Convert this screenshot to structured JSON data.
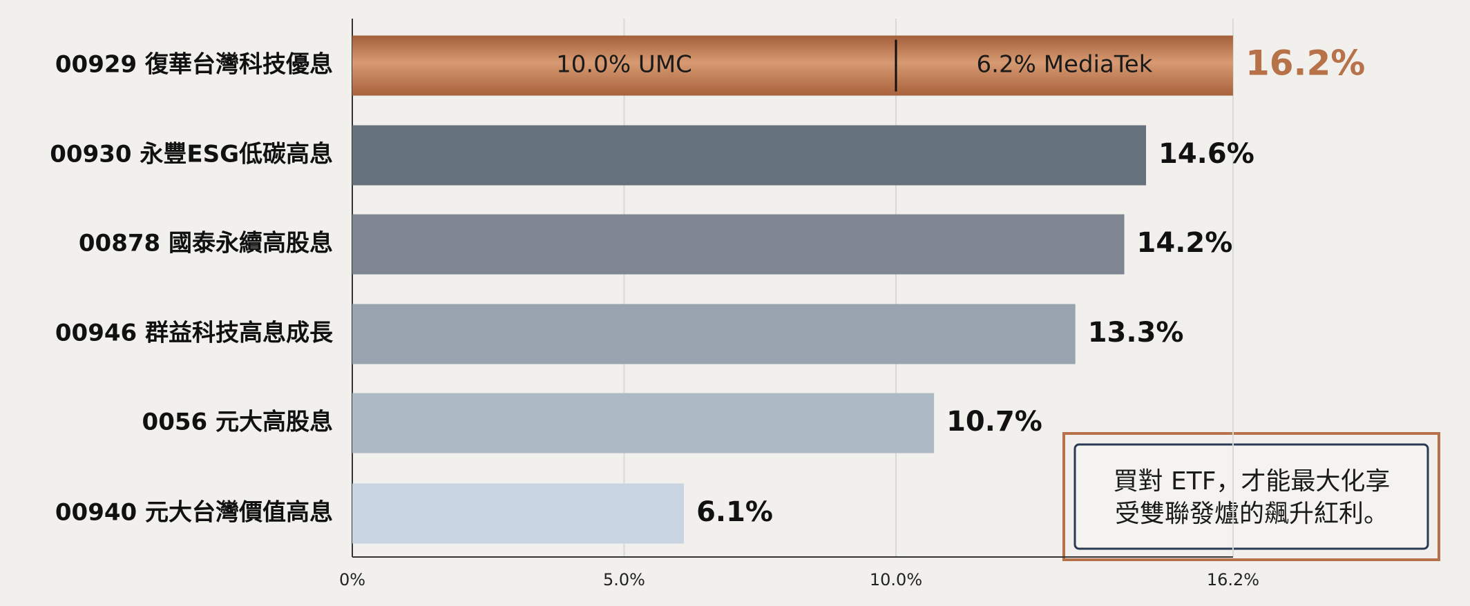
{
  "chart_data": {
    "type": "bar",
    "orientation": "horizontal",
    "categories": [
      "00929 復華台灣科技優息",
      "00930 永豐ESG低碳高息",
      "00878 國泰永續高股息",
      "00946 群益科技高息成長",
      "0056 元大高股息",
      "00940 元大台灣價值高息"
    ],
    "values": [
      16.2,
      14.6,
      14.2,
      13.3,
      10.7,
      6.1
    ],
    "value_labels": [
      "16.2%",
      "14.6%",
      "14.2%",
      "13.3%",
      "10.7%",
      "6.1%"
    ],
    "colors": [
      "#b8724a",
      "#65717b",
      "#7d8691",
      "#9aa4b1",
      "#aeb9c6",
      "#c9d4e2"
    ],
    "segments": [
      {
        "name": "UMC",
        "value": 10.0,
        "label": "10.0% UMC"
      },
      {
        "name": "MediaTek",
        "value": 6.2,
        "label": "6.2% MediaTek"
      }
    ],
    "xlim": [
      0,
      20
    ],
    "xticks": [
      {
        "value": 0,
        "label": "0%"
      },
      {
        "value": 5,
        "label": "5.0%"
      },
      {
        "value": 10,
        "label": "10.0%"
      },
      {
        "value": 16.2,
        "label": "16.2%"
      }
    ],
    "grid": true,
    "callout": {
      "lines": [
        "買對 ETF，才能最大化享",
        "受雙聯發爐的飆升紅利。"
      ]
    }
  }
}
